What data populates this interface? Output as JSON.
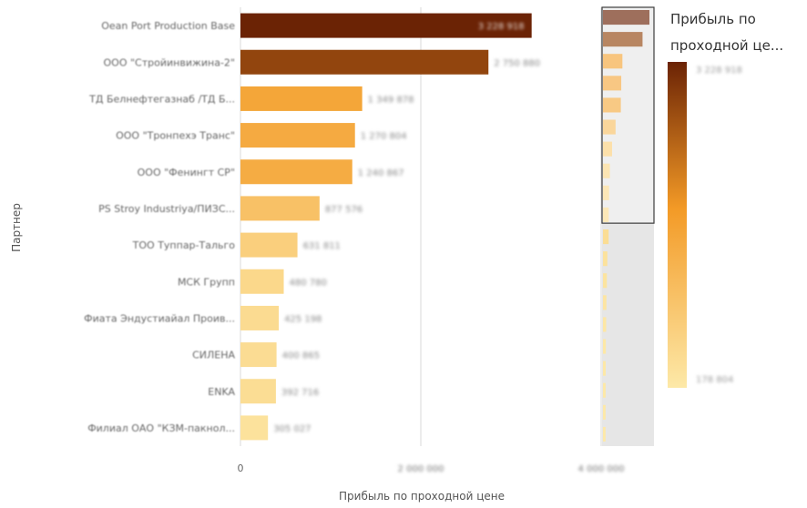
{
  "chart_data": {
    "type": "bar",
    "orientation": "horizontal",
    "xlabel": "Прибыль по проходной цене",
    "ylabel": "Партнер",
    "xlim": [
      0,
      4000000
    ],
    "x_ticks": [
      {
        "value": 0,
        "label": "0"
      },
      {
        "value": 2000000,
        "label": "2 000 000"
      },
      {
        "value": 4000000,
        "label": "4 000 000"
      }
    ],
    "grid": true,
    "categories": [
      "Oean Port Production Base",
      "ООО \"Стройинвижина-2\"",
      "ТД Белнефтегазнаб /ТД Б...",
      "ООО \"Тронпехэ Транс\"",
      "ООО \"Фенингт СР\"",
      "PS Stroy Industriya/ПИЗС...",
      "ТОО Туппар-Тальго",
      "МСК Групп",
      "Фиата Эндустиайал Проив...",
      "СИЛЕНА",
      "ENKA",
      "Филиал ОАО \"КЗМ-пакнол..."
    ],
    "values": [
      3229000,
      2750000,
      1350000,
      1270000,
      1240000,
      877000,
      632000,
      480000,
      425000,
      400000,
      393000,
      305000
    ],
    "value_labels": [
      "3 228 918",
      "2 750 880",
      "1 349 878",
      "1 270 804",
      "1 240 867",
      "877 576",
      "631 811",
      "480 780",
      "425 198",
      "400 865",
      "392 716",
      "305 027"
    ],
    "legend": {
      "title": "Прибыль по проходной це...",
      "max_label": "3 228 918",
      "min_label": "178 804",
      "placement": "right",
      "color_max": "#6b2305",
      "color_mid": "#f39a26",
      "color_min": "#fde9a8"
    },
    "minimap_values": [
      3229000,
      2750000,
      1350000,
      1270000,
      1240000,
      877000,
      632000,
      480000,
      425000,
      400000,
      393000,
      305000,
      270000,
      240000,
      220000,
      200000,
      190000,
      185000,
      182000,
      179000
    ],
    "minimap_visible_count": 12
  }
}
